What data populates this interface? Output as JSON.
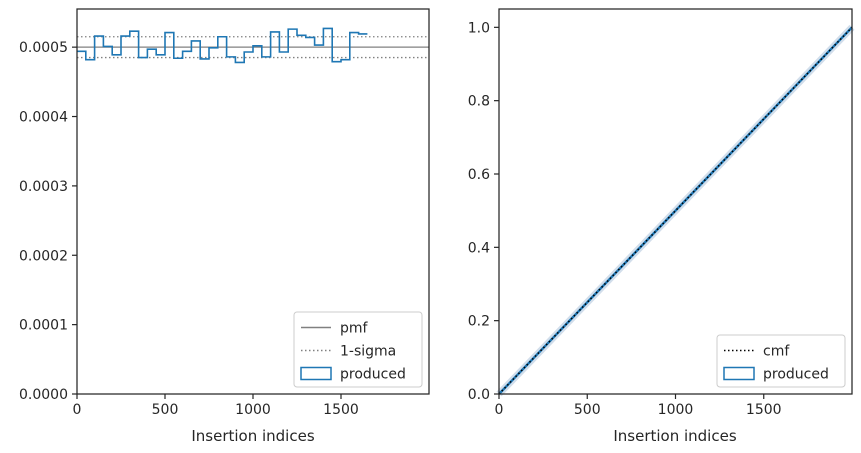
{
  "chart_data": [
    {
      "type": "step",
      "xlabel": "Insertion indices",
      "ylabel": "",
      "xlim": [
        0,
        2000
      ],
      "ylim": [
        0,
        0.000555
      ],
      "xticks": [
        0,
        500,
        1000,
        1500
      ],
      "yticks": [
        0,
        0.0001,
        0.0002,
        0.0003,
        0.0004,
        0.0005
      ],
      "ytick_labels": [
        "0.0000",
        "0.0001",
        "0.0002",
        "0.0003",
        "0.0004",
        "0.0005"
      ],
      "legend": {
        "position": "lower-right",
        "entries": [
          {
            "label": "pmf",
            "kind": "line",
            "color": "#808080"
          },
          {
            "label": "1-sigma",
            "kind": "dotted",
            "color": "#808080"
          },
          {
            "label": "produced",
            "kind": "patch",
            "color": "#1f77b4"
          }
        ]
      },
      "pmf": 0.0005,
      "sigma_band": [
        0.000485,
        0.000515
      ],
      "bin_width": 50,
      "bin_edges_start": 0,
      "produced": [
        0.000494,
        0.000482,
        0.000516,
        0.000501,
        0.000489,
        0.000516,
        0.000523,
        0.000485,
        0.000497,
        0.000489,
        0.000521,
        0.000484,
        0.000494,
        0.000509,
        0.000483,
        0.000499,
        0.000515,
        0.000486,
        0.000478,
        0.000493,
        0.000502,
        0.000486,
        0.000522,
        0.000493,
        0.000526,
        0.000517,
        0.000514,
        0.000503,
        0.000527,
        0.000479,
        0.000482,
        0.000521,
        0.000519
      ],
      "colors": {
        "produced": "#1f77b4",
        "reference": "#808080"
      }
    },
    {
      "type": "line",
      "xlabel": "Insertion indices",
      "ylabel": "",
      "xlim": [
        0,
        2000
      ],
      "ylim": [
        0,
        1.05
      ],
      "xticks": [
        0,
        500,
        1000,
        1500
      ],
      "yticks": [
        0,
        0.2,
        0.4,
        0.6,
        0.8,
        1.0
      ],
      "ytick_labels": [
        "0.0",
        "0.2",
        "0.4",
        "0.6",
        "0.8",
        "1.0"
      ],
      "legend": {
        "position": "lower-right",
        "entries": [
          {
            "label": "cmf",
            "kind": "dotted",
            "color": "#000000"
          },
          {
            "label": "produced",
            "kind": "patch",
            "color": "#1f77b4"
          }
        ]
      },
      "cmf": {
        "x": [
          0,
          2000
        ],
        "y": [
          0,
          1
        ]
      },
      "produced": {
        "x": [
          0,
          2000
        ],
        "y": [
          0,
          1
        ]
      },
      "colors": {
        "produced": "#1f77b4",
        "band": "#c7d6e6",
        "cmf": "#000000"
      }
    }
  ]
}
